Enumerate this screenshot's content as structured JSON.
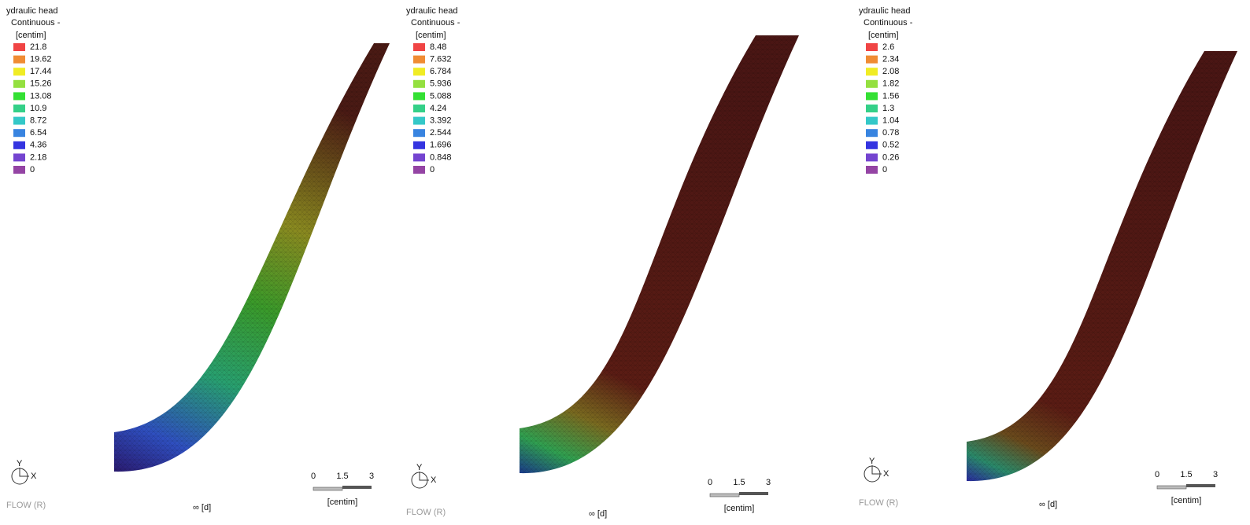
{
  "panels": [
    {
      "legend": {
        "title": "ydraulic head",
        "subtitle": "Continuous -",
        "unit": "[centim]",
        "labels": [
          "21.8",
          "19.62",
          "17.44",
          "15.26",
          "13.08",
          "10.9",
          "8.72",
          "6.54",
          "4.36",
          "2.18",
          "0"
        ]
      },
      "axis": {
        "y": "Y",
        "x": "X"
      },
      "scale": {
        "ticks": [
          "0",
          "1.5",
          "3"
        ],
        "unit": "[centim]"
      },
      "time": "∞ [d]",
      "watermark": "FLOW (R)"
    },
    {
      "legend": {
        "title": "ydraulic head",
        "subtitle": "Continuous -",
        "unit": "[centim]",
        "labels": [
          "8.48",
          "7.632",
          "6.784",
          "5.936",
          "5.088",
          "4.24",
          "3.392",
          "2.544",
          "1.696",
          "0.848",
          "0"
        ]
      },
      "axis": {
        "y": "Y",
        "x": "X"
      },
      "scale": {
        "ticks": [
          "0",
          "1.5",
          "3"
        ],
        "unit": "[centim]"
      },
      "time": "∞ [d]",
      "watermark": "FLOW (R)"
    },
    {
      "legend": {
        "title": "ydraulic head",
        "subtitle": "Continuous -",
        "unit": "[centim]",
        "labels": [
          "2.6",
          "2.34",
          "2.08",
          "1.82",
          "1.56",
          "1.3",
          "1.04",
          "0.78",
          "0.52",
          "0.26",
          "0"
        ]
      },
      "axis": {
        "y": "Y",
        "x": "X"
      },
      "scale": {
        "ticks": [
          "0",
          "1.5",
          "3"
        ],
        "unit": "[centim]"
      },
      "time": "∞ [d]",
      "watermark": "FLOW (R)"
    }
  ],
  "legend_colors": [
    "#f04444",
    "#f08c34",
    "#f0ec24",
    "#94e040",
    "#34e034",
    "#34d088",
    "#34c8c8",
    "#3884e0",
    "#3434e0",
    "#7444d0",
    "#9444a4"
  ]
}
